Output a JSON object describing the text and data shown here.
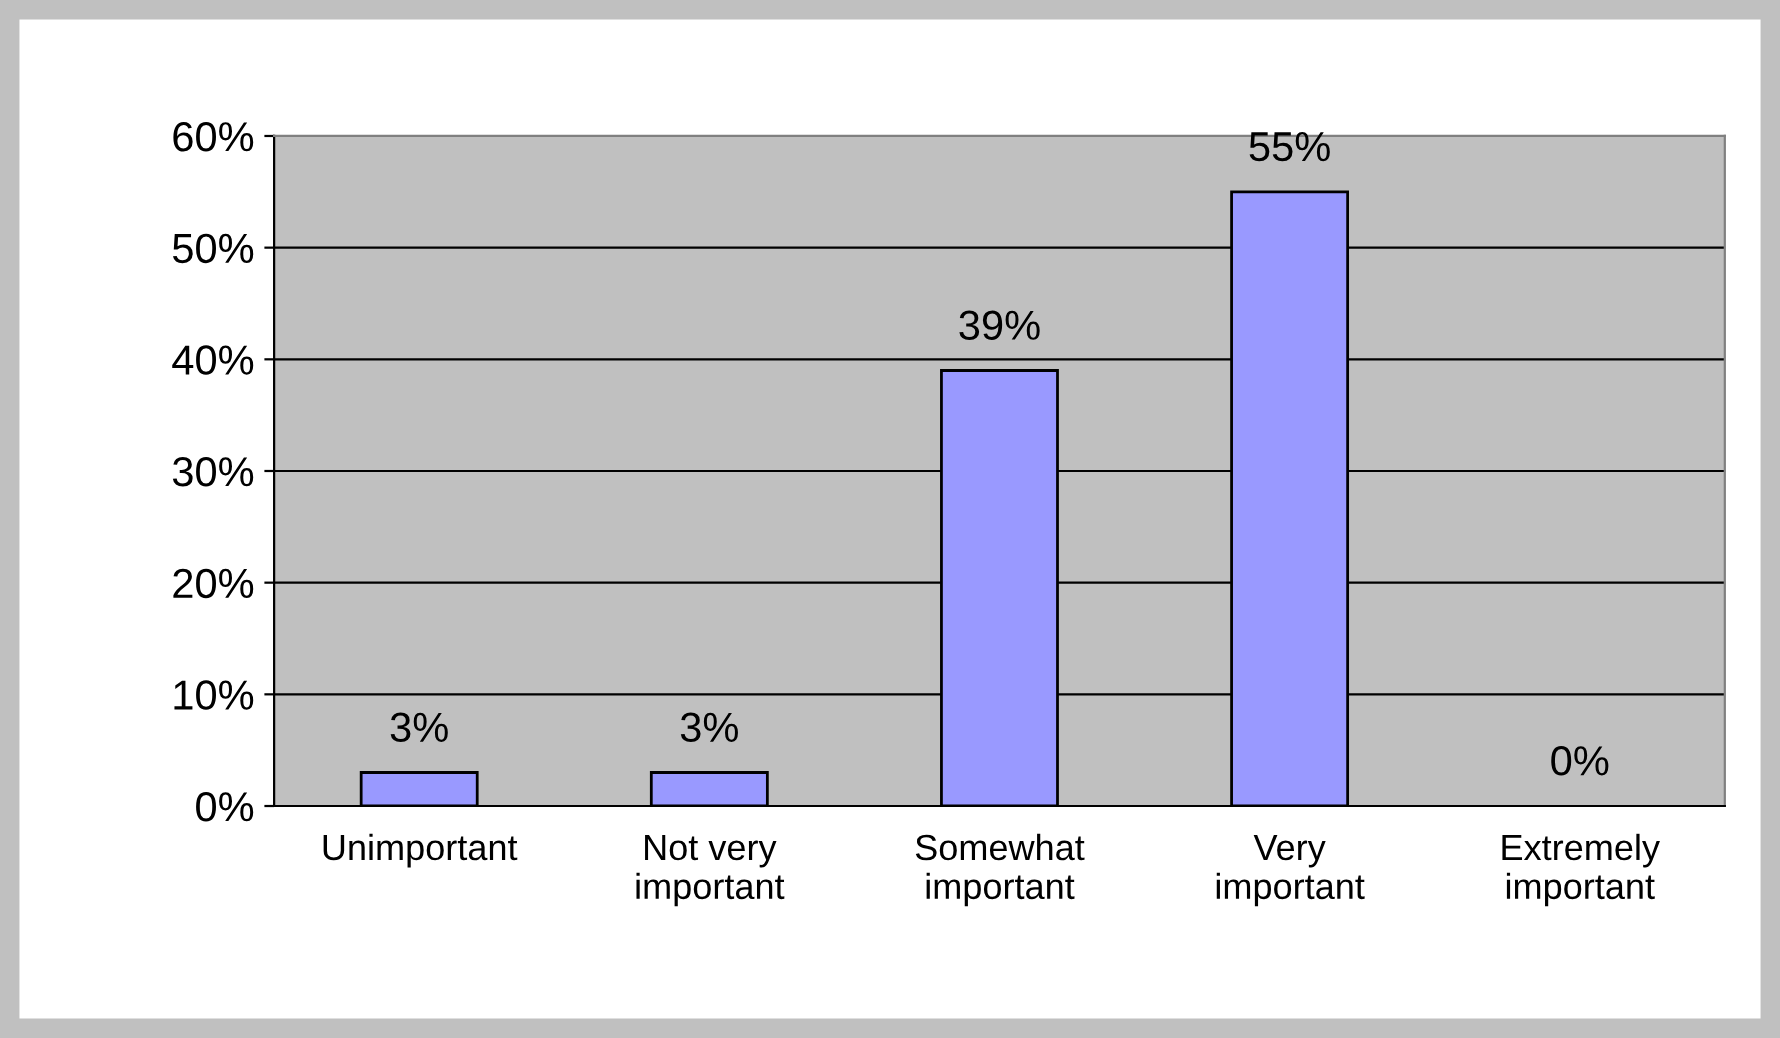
{
  "chart_data": {
    "type": "bar",
    "categories": [
      "Unimportant",
      "Not very\nimportant",
      "Somewhat\nimportant",
      "Very\nimportant",
      "Extremely\nimportant"
    ],
    "values": [
      3,
      3,
      39,
      55,
      0
    ],
    "value_labels": [
      "3%",
      "3%",
      "39%",
      "55%",
      "0%"
    ],
    "color": "#9999ff",
    "ylim": [
      0,
      60
    ],
    "yticks": [
      {
        "value": 0,
        "label": "0%"
      },
      {
        "value": 10,
        "label": "10%"
      },
      {
        "value": 20,
        "label": "20%"
      },
      {
        "value": 30,
        "label": "30%"
      },
      {
        "value": 40,
        "label": "40%"
      },
      {
        "value": 50,
        "label": "50%"
      },
      {
        "value": 60,
        "label": "60%"
      }
    ],
    "grid": "y",
    "legend": false
  }
}
